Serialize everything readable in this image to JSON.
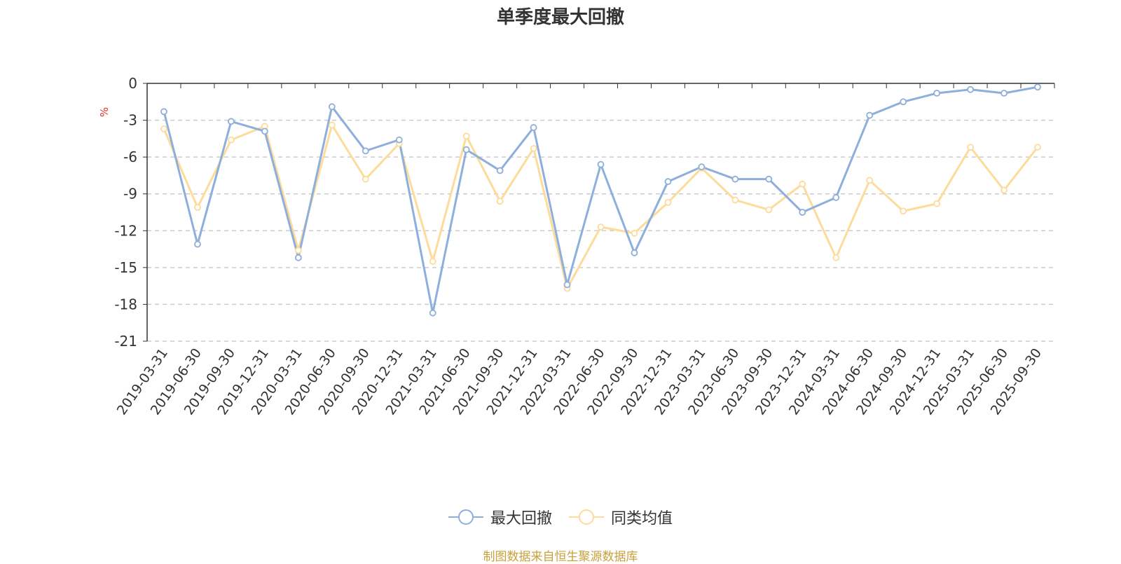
{
  "chart_data": {
    "type": "line",
    "title": "单季度最大回撤",
    "ylabel": "%",
    "ylim": [
      -21,
      0
    ],
    "yticks": [
      0,
      -3,
      -6,
      -9,
      -12,
      -15,
      -18,
      -21
    ],
    "grid": true,
    "legend_position": "bottom",
    "categories": [
      "2019-03-31",
      "2019-06-30",
      "2019-09-30",
      "2019-12-31",
      "2020-03-31",
      "2020-06-30",
      "2020-09-30",
      "2020-12-31",
      "2021-03-31",
      "2021-06-30",
      "2021-09-30",
      "2021-12-31",
      "2022-03-31",
      "2022-06-30",
      "2022-09-30",
      "2022-12-31",
      "2023-03-31",
      "2023-06-30",
      "2023-09-30",
      "2023-12-31",
      "2024-03-31",
      "2024-06-30",
      "2024-09-30",
      "2024-12-31",
      "2025-03-31",
      "2025-06-30",
      "2025-09-30"
    ],
    "series": [
      {
        "name": "最大回撤",
        "color": "#8eaedb",
        "values": [
          -2.3,
          -13.1,
          -3.1,
          -3.9,
          -14.2,
          -1.9,
          -5.5,
          -4.6,
          -18.7,
          -5.4,
          -7.1,
          -3.6,
          -16.4,
          -6.6,
          -13.8,
          -8.0,
          -6.8,
          -7.8,
          -7.8,
          -10.5,
          -9.3,
          -2.6,
          -1.5,
          -0.8,
          -0.5,
          -0.8,
          -0.3
        ]
      },
      {
        "name": "同类均值",
        "color": "#fddb9a",
        "values": [
          -3.7,
          -10.1,
          -4.6,
          -3.5,
          -13.6,
          -3.4,
          -7.8,
          -4.9,
          -14.5,
          -4.3,
          -9.6,
          -5.3,
          -16.7,
          -11.7,
          -12.2,
          -9.7,
          -6.9,
          -9.5,
          -10.3,
          -8.2,
          -14.2,
          -7.9,
          -10.4,
          -9.8,
          -5.2,
          -8.7,
          -5.2
        ]
      }
    ]
  },
  "footer": {
    "source": "制图数据来自恒生聚源数据库"
  }
}
